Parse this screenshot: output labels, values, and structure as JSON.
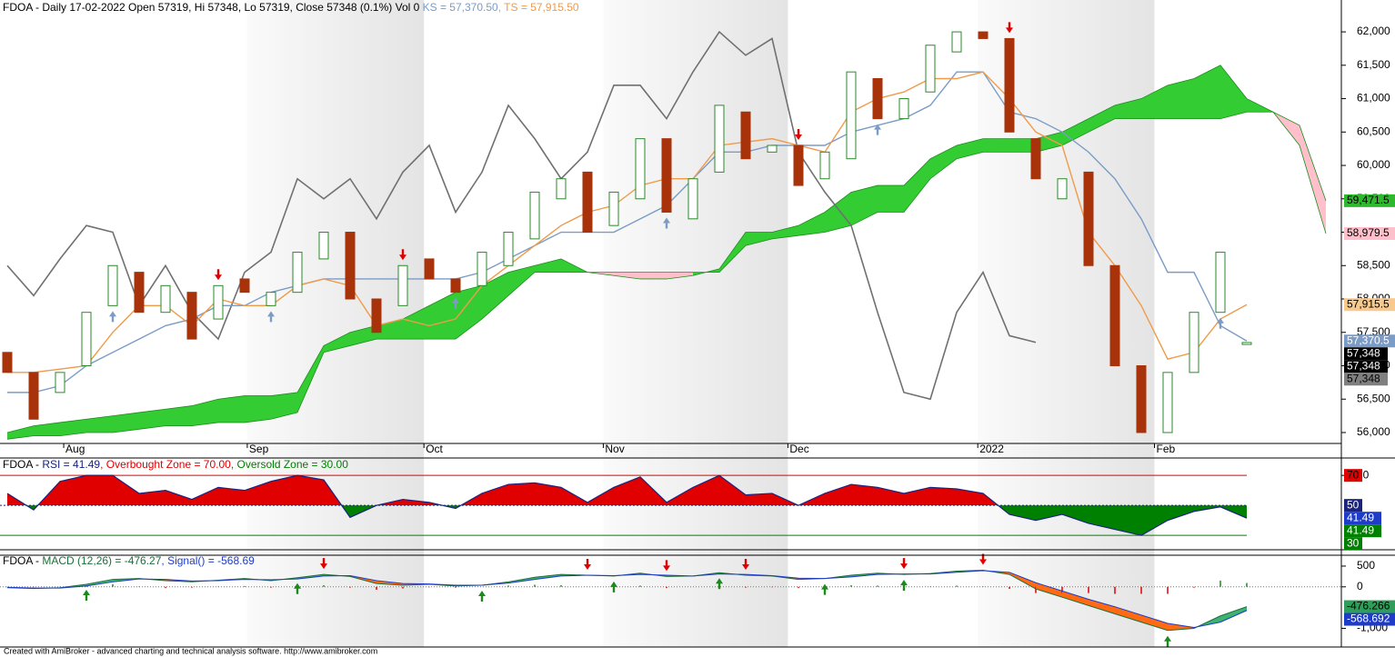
{
  "chart_data": [
    {
      "type": "candlestick",
      "title": "FDOA - Daily 17-02-2022 Open 57319, Hi 57348, Lo 57319, Close 57348 (0.1%) Vol 0 ",
      "xticks": [
        {
          "value": 2.14,
          "label": "Aug"
        },
        {
          "value": 9.1,
          "label": "Sep"
        },
        {
          "value": 15.8,
          "label": "Oct"
        },
        {
          "value": 22.6,
          "label": "Nov"
        },
        {
          "value": 29.6,
          "label": "Dec"
        },
        {
          "value": 36.8,
          "label": "2022"
        },
        {
          "value": 43.5,
          "label": "Feb"
        }
      ],
      "ylim": [
        55850,
        62450
      ],
      "yticks": [
        {
          "value": 56000,
          "label": "56,000"
        },
        {
          "value": 56500,
          "label": "56,500"
        },
        {
          "value": 57000,
          "label": "57,000"
        },
        {
          "value": 57500,
          "label": "57,500"
        },
        {
          "value": 58000,
          "label": "58,000"
        },
        {
          "value": 58500,
          "label": "58,500"
        },
        {
          "value": 59000,
          "label": "59,000"
        },
        {
          "value": 59500,
          "label": "59,500"
        },
        {
          "value": 60000,
          "label": "60,000"
        },
        {
          "value": 60500,
          "label": "60,500"
        },
        {
          "value": 61000,
          "label": "61,000"
        },
        {
          "value": 61500,
          "label": "61,500"
        },
        {
          "value": 62000,
          "label": "62,000"
        }
      ],
      "open": [
        57200,
        56900,
        56600,
        57000,
        57900,
        58400,
        57800,
        58100,
        57700,
        58300,
        57900,
        58100,
        58600,
        59000,
        58000,
        57900,
        58600,
        58300,
        58200,
        58500,
        58900,
        59500,
        59900,
        59100,
        59500,
        60400,
        59200,
        59900,
        60800,
        60200,
        60300,
        59800,
        60100,
        61300,
        60700,
        61100,
        61700,
        62000,
        61900,
        60400,
        59500,
        59900,
        58500,
        57000,
        56000,
        56900,
        57800,
        57319,
        null,
        null,
        null
      ],
      "close": [
        56900,
        56200,
        56900,
        57800,
        58500,
        57800,
        58200,
        57400,
        58200,
        58100,
        58100,
        58700,
        59000,
        58000,
        57500,
        58500,
        58300,
        58100,
        58700,
        59000,
        59600,
        59800,
        59000,
        59600,
        60400,
        59300,
        59800,
        60900,
        60100,
        60300,
        59700,
        60200,
        61400,
        60700,
        61000,
        61800,
        62000,
        61900,
        60500,
        59800,
        59800,
        58500,
        57000,
        56000,
        56900,
        57800,
        58700,
        57348,
        null,
        null,
        null
      ],
      "up_color": "#2a8a2a",
      "down_color": "#a8320a",
      "series": [
        {
          "name": "KS = 57,370.50",
          "color": "#7a9cc6",
          "values": [
            56600,
            56600,
            56700,
            57000,
            57200,
            57400,
            57600,
            57700,
            57900,
            57900,
            58100,
            58200,
            58300,
            58300,
            58300,
            58300,
            58300,
            58300,
            58400,
            58600,
            58800,
            59000,
            59000,
            59000,
            59200,
            59400,
            59800,
            60200,
            60200,
            60300,
            60300,
            60300,
            60500,
            60600,
            60700,
            60900,
            61400,
            61400,
            60800,
            60700,
            60500,
            60200,
            59800,
            59200,
            58400,
            58400,
            57600,
            57370.5,
            null,
            null,
            null
          ]
        },
        {
          "name": ", TS = 57,915.50",
          "color": "#f09a4a",
          "values": [
            56900,
            56900,
            56950,
            57000,
            57500,
            57900,
            57900,
            57600,
            58000,
            57900,
            57900,
            58200,
            58300,
            58200,
            57600,
            57700,
            57600,
            57700,
            58200,
            58500,
            58800,
            59100,
            59300,
            59400,
            59700,
            59800,
            59800,
            60300,
            60350,
            60400,
            60300,
            60200,
            60800,
            61000,
            61100,
            61300,
            61300,
            61400,
            61000,
            60500,
            60300,
            59000,
            58500,
            57900,
            57100,
            57200,
            57700,
            57915.5,
            null,
            null,
            null
          ]
        }
      ],
      "chikou": [
        58500,
        58050,
        58600,
        59100,
        59000,
        57900,
        58500,
        57800,
        57400,
        58400,
        58700,
        59800,
        59500,
        59800,
        59200,
        59900,
        60300,
        59300,
        59900,
        60900,
        60400,
        59800,
        60200,
        61200,
        61200,
        60700,
        61400,
        62000,
        61650,
        61900,
        60200,
        59600,
        59100,
        57800,
        56600,
        56500,
        57800,
        58400,
        57450,
        57350,
        null,
        null,
        null,
        null,
        null,
        null,
        null,
        null,
        null,
        null,
        null
      ],
      "chikou_color": "#707070",
      "span_a": [
        56000,
        56100,
        56150,
        56200,
        56250,
        56300,
        56350,
        56400,
        56500,
        56550,
        56550,
        56600,
        57300,
        57500,
        57600,
        57700,
        57900,
        58100,
        58200,
        58400,
        58500,
        58600,
        58400,
        58350,
        58300,
        58300,
        58350,
        58450,
        59000,
        59000,
        59100,
        59300,
        59600,
        59700,
        59700,
        60100,
        60300,
        60400,
        60400,
        60400,
        60500,
        60700,
        60900,
        61000,
        61200,
        61300,
        61500,
        61000,
        60800,
        60300,
        58979.5
      ],
      "span_b": [
        55900,
        55950,
        55950,
        56000,
        56000,
        56050,
        56100,
        56100,
        56150,
        56150,
        56200,
        56300,
        57200,
        57300,
        57400,
        57400,
        57400,
        57400,
        57700,
        58050,
        58400,
        58400,
        58400,
        58400,
        58400,
        58400,
        58400,
        58400,
        58800,
        58900,
        58950,
        59000,
        59100,
        59300,
        59300,
        59800,
        60100,
        60200,
        60200,
        60200,
        60300,
        60500,
        60700,
        60700,
        60700,
        60700,
        60700,
        60800,
        60800,
        60600,
        59471.5
      ],
      "cloud_up_color": "#33cc33",
      "cloud_down_color": "#ffc0cb",
      "span_color": "#1e8c1e",
      "sell_signals": [
        8,
        15,
        30,
        38
      ],
      "buy_signals": [
        4,
        10,
        17,
        25,
        33,
        46
      ],
      "sell_color": "#e00000",
      "buy_color": "#7a9cc6",
      "tags": [
        {
          "value": 59471.5,
          "label": "59,471.5",
          "color": "#2db82d",
          "text_color": "#000"
        },
        {
          "value": 58979.5,
          "label": "58,979.5",
          "color": "#ffc0cb",
          "text_color": "#000"
        },
        {
          "value": 57915.5,
          "label": "57,915.5",
          "color": "#f7c98c",
          "text_color": "#000"
        },
        {
          "value": 57370.5,
          "label": "57,370.5",
          "color": "#7a9cc6",
          "text_color": "#fff"
        },
        {
          "value": 57348,
          "label": "57,348",
          "color": "#000",
          "text_color": "#fff"
        },
        {
          "value": 57348,
          "label": "57,348",
          "color": "#000",
          "text_color": "#fff"
        },
        {
          "value": 57348,
          "label": "57,348",
          "color": "#808080",
          "text_color": "#000"
        }
      ],
      "footer": "Created with AmiBroker - advanced charting and technical analysis software. http://www.amibroker.com"
    },
    {
      "type": "area",
      "title": "FDOA - ",
      "series": [
        {
          "name": "RSI = 41.49",
          "color": "#1a237e",
          "values": [
            58,
            47,
            66,
            70,
            70,
            58,
            60,
            54,
            62,
            60,
            66,
            70,
            67,
            42,
            50,
            54,
            52,
            48,
            58,
            64,
            65,
            62,
            52,
            62,
            69,
            52,
            62,
            70,
            57,
            58,
            50,
            58,
            64,
            62,
            58,
            62,
            61,
            58,
            44,
            40,
            44,
            38,
            34,
            30,
            40,
            46,
            49,
            41.49,
            null,
            null,
            null
          ]
        }
      ],
      "overbought_label": ", Overbought Zone = 70.00",
      "oversold_label": ", Oversold Zone = 30.00",
      "overbought": 70,
      "oversold": 30,
      "midline": 50,
      "overbought_color": "#e00000",
      "oversold_color": "#008000",
      "ylim": [
        21,
        81
      ],
      "yticks": [
        70
      ],
      "tags": [
        {
          "value": 70,
          "label": "70",
          "color": "#e00000",
          "text_color": "#000"
        },
        {
          "value": 50,
          "label": "50",
          "color": "#1a237e",
          "text_color": "#fff"
        },
        {
          "value": 41.49,
          "label": "41.49",
          "color": "#1e3cc8",
          "text_color": "#fff"
        },
        {
          "value": 41.49,
          "label": "41.49",
          "color": "#008000",
          "text_color": "#fff"
        },
        {
          "value": 30,
          "label": "30",
          "color": "#008000",
          "text_color": "#fff"
        }
      ]
    },
    {
      "type": "line",
      "title": "FDOA - ",
      "series": [
        {
          "name": "MACD (12,26) = -476.27",
          "color": "#1e6e3c",
          "values": [
            -20,
            -40,
            -20,
            60,
            180,
            200,
            150,
            120,
            160,
            200,
            150,
            220,
            300,
            250,
            80,
            40,
            60,
            20,
            40,
            120,
            230,
            300,
            280,
            260,
            330,
            250,
            260,
            340,
            280,
            260,
            180,
            200,
            280,
            330,
            300,
            320,
            380,
            400,
            300,
            -50,
            -250,
            -450,
            -650,
            -850,
            -1050,
            -1000,
            -700,
            -476.27,
            null,
            null,
            null
          ]
        },
        {
          "name": ", Signal() = -568.69",
          "color": "#1e3cc8",
          "values": [
            -10,
            -30,
            -30,
            20,
            120,
            190,
            180,
            140,
            150,
            180,
            170,
            190,
            260,
            270,
            150,
            80,
            70,
            40,
            40,
            90,
            180,
            260,
            280,
            270,
            300,
            280,
            260,
            310,
            300,
            270,
            210,
            200,
            240,
            300,
            310,
            310,
            350,
            390,
            350,
            100,
            -100,
            -300,
            -480,
            -680,
            -880,
            -980,
            -850,
            -568.69,
            null,
            null,
            null
          ]
        }
      ],
      "ribbon_up_color": "#3cb371",
      "ribbon_down_color": "#ff6a13",
      "buy_signals": [
        3,
        11,
        18,
        23,
        27,
        31,
        34,
        44
      ],
      "sell_signals": [
        12,
        22,
        25,
        28,
        34,
        37
      ],
      "buy_color": "#1a8a1a",
      "sell_color": "#e00000",
      "ylim": [
        -1450,
        740
      ],
      "yticks": [
        500,
        0,
        {
          "value": -1000,
          "label": "-1,000"
        }
      ],
      "tags": [
        {
          "value": -476.266,
          "label": "-476.266",
          "color": "#2e9e5a",
          "text_color": "#000"
        },
        {
          "value": -568.692,
          "label": "-568.692",
          "color": "#1e3cc8",
          "text_color": "#fff"
        }
      ]
    }
  ]
}
